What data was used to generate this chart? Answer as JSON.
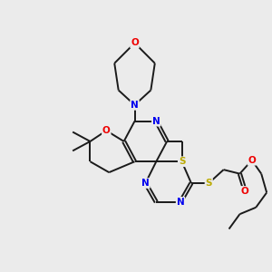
{
  "bg_color": "#ebebeb",
  "atom_colors": {
    "C": "#000000",
    "N": "#0000ee",
    "O": "#ee0000",
    "S": "#bbaa00",
    "H": "#000000"
  },
  "bond_color": "#1a1a1a",
  "bond_width": 1.4,
  "dbo": 0.055,
  "figsize": [
    3.0,
    3.0
  ],
  "dpi": 100,
  "xlim": [
    0,
    10
  ],
  "ylim": [
    0,
    10
  ]
}
